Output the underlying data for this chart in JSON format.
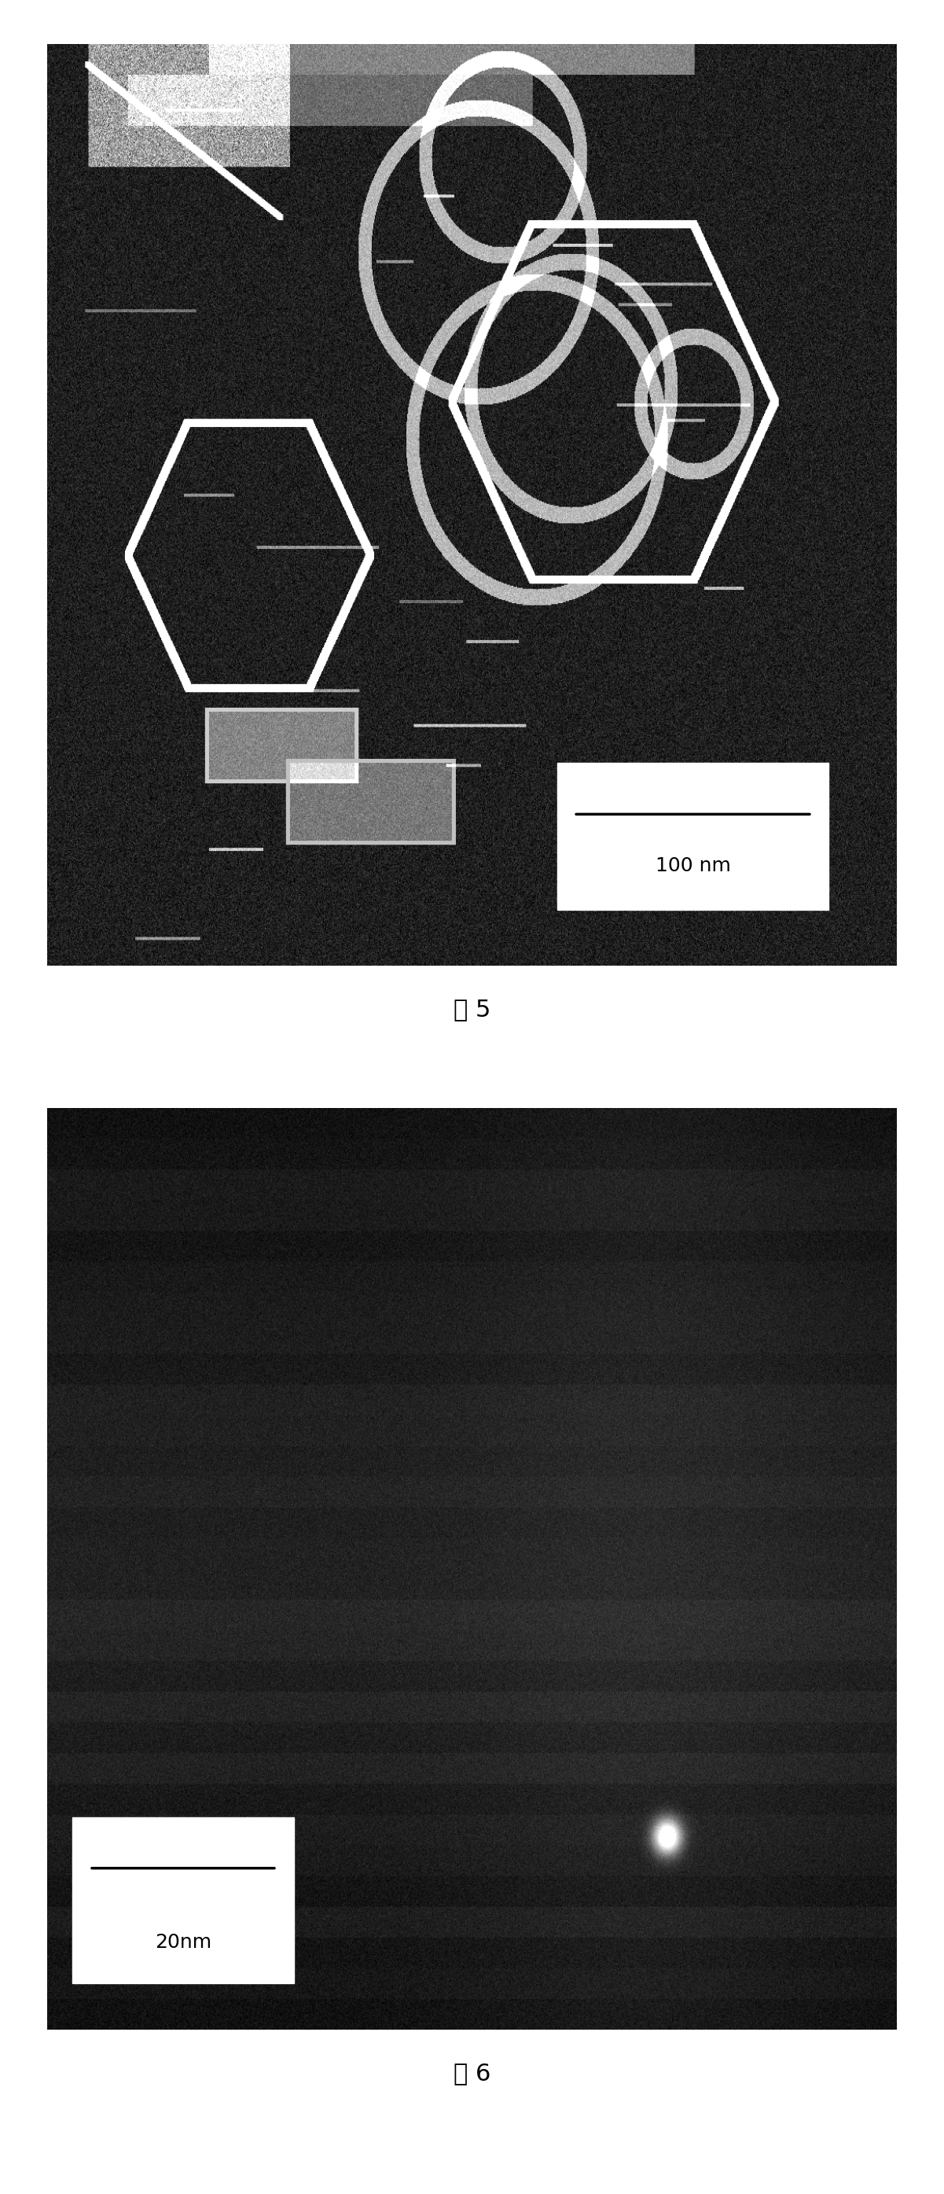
{
  "fig_width": 12.01,
  "fig_height": 27.9,
  "bg_color": "#ffffff",
  "fig5": {
    "label": "图 5",
    "label_fontsize": 22,
    "scalebar_text": "100 nm",
    "scalebar_fontsize": 18,
    "image_bg": "#1a1a1a",
    "panel_bg": "#f0f0f0"
  },
  "fig6": {
    "label": "图 6",
    "label_fontsize": 22,
    "scalebar_text": "20nm",
    "scalebar_fontsize": 18,
    "image_bg": "#111111",
    "panel_bg": "#f0f0f0"
  }
}
